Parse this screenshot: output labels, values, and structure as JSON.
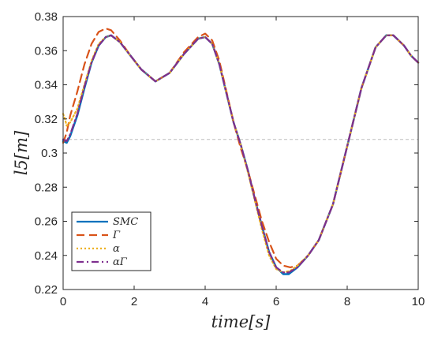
{
  "chart_data": {
    "type": "line",
    "xlabel": "time[s]",
    "ylabel": "l5[m]",
    "xlim": [
      0,
      10
    ],
    "ylim": [
      0.22,
      0.38
    ],
    "x_ticks": [
      0,
      2,
      4,
      6,
      8,
      10
    ],
    "x_tick_labels": [
      "0",
      "2",
      "4",
      "6",
      "8",
      "10"
    ],
    "y_ticks": [
      0.22,
      0.24,
      0.26,
      0.28,
      0.3,
      0.32,
      0.34,
      0.36,
      0.38
    ],
    "y_tick_labels": [
      "0.22",
      "0.24",
      "0.26",
      "0.28",
      "0.3",
      "0.32",
      "0.34",
      "0.36",
      "0.38"
    ],
    "reference_line": {
      "y": 0.308,
      "style": "dashed",
      "color": "#bdbdbd"
    },
    "grid": false,
    "legend": {
      "placement": "bottom-left"
    },
    "series": [
      {
        "name": "SMC",
        "color": "#0072BD",
        "dash": "solid",
        "x": [
          0,
          0.1,
          0.2,
          0.4,
          0.6,
          0.8,
          1.0,
          1.2,
          1.35,
          1.6,
          1.9,
          2.2,
          2.6,
          3.0,
          3.4,
          3.8,
          4.0,
          4.2,
          4.4,
          4.6,
          4.8,
          5.0,
          5.2,
          5.4,
          5.6,
          5.8,
          6.0,
          6.2,
          6.35,
          6.6,
          6.9,
          7.2,
          7.6,
          8.0,
          8.4,
          8.8,
          9.1,
          9.3,
          9.6,
          9.8,
          10.0
        ],
        "values": [
          0.307,
          0.306,
          0.31,
          0.322,
          0.338,
          0.353,
          0.363,
          0.368,
          0.369,
          0.365,
          0.357,
          0.349,
          0.342,
          0.347,
          0.358,
          0.367,
          0.368,
          0.364,
          0.352,
          0.335,
          0.318,
          0.305,
          0.29,
          0.273,
          0.257,
          0.242,
          0.233,
          0.229,
          0.229,
          0.233,
          0.24,
          0.249,
          0.27,
          0.304,
          0.338,
          0.362,
          0.369,
          0.369,
          0.363,
          0.357,
          0.353
        ]
      },
      {
        "name": "Γ",
        "color": "#D95319",
        "dash": "dashed",
        "x": [
          0,
          0.1,
          0.2,
          0.4,
          0.6,
          0.8,
          1.0,
          1.2,
          1.35,
          1.6,
          1.9,
          2.2,
          2.6,
          3.0,
          3.4,
          3.8,
          4.0,
          4.2,
          4.4,
          4.6,
          4.8,
          5.0,
          5.2,
          5.4,
          5.6,
          5.8,
          6.0,
          6.2,
          6.4,
          6.6,
          6.9,
          7.2,
          7.6,
          8.0,
          8.4,
          8.8,
          9.1,
          9.3,
          9.6,
          9.8,
          10.0
        ],
        "values": [
          0.306,
          0.312,
          0.322,
          0.336,
          0.352,
          0.364,
          0.371,
          0.373,
          0.372,
          0.366,
          0.357,
          0.349,
          0.342,
          0.347,
          0.359,
          0.368,
          0.37,
          0.366,
          0.354,
          0.336,
          0.318,
          0.303,
          0.29,
          0.275,
          0.26,
          0.248,
          0.238,
          0.234,
          0.233,
          0.234,
          0.24,
          0.249,
          0.27,
          0.304,
          0.338,
          0.362,
          0.369,
          0.369,
          0.363,
          0.357,
          0.353
        ]
      },
      {
        "name": "α",
        "color": "#EDB120",
        "dash": "dotted",
        "x": [
          0,
          0.05,
          0.1,
          0.2,
          0.4,
          0.6,
          0.8,
          1.0,
          1.2,
          1.35,
          1.6,
          1.9,
          2.2,
          2.6,
          3.0,
          3.4,
          3.8,
          4.0,
          4.2,
          4.4,
          4.6,
          4.8,
          5.0,
          5.2,
          5.4,
          5.6,
          5.8,
          6.0,
          6.2,
          6.4,
          6.6,
          6.9,
          7.2,
          7.6,
          8.0,
          8.4,
          8.8,
          9.1,
          9.3,
          9.6,
          9.8,
          10.0
        ],
        "values": [
          0.323,
          0.32,
          0.316,
          0.318,
          0.326,
          0.34,
          0.354,
          0.364,
          0.368,
          0.369,
          0.365,
          0.357,
          0.349,
          0.342,
          0.347,
          0.358,
          0.367,
          0.368,
          0.364,
          0.352,
          0.335,
          0.318,
          0.305,
          0.289,
          0.272,
          0.255,
          0.24,
          0.232,
          0.23,
          0.231,
          0.234,
          0.24,
          0.249,
          0.27,
          0.304,
          0.338,
          0.362,
          0.369,
          0.369,
          0.363,
          0.357,
          0.353
        ]
      },
      {
        "name": "αΓ",
        "color": "#7E2F8E",
        "dash": "dashdot",
        "x": [
          0,
          0.1,
          0.2,
          0.4,
          0.6,
          0.8,
          1.0,
          1.2,
          1.35,
          1.6,
          1.9,
          2.2,
          2.6,
          3.0,
          3.4,
          3.8,
          4.0,
          4.2,
          4.4,
          4.6,
          4.8,
          5.0,
          5.2,
          5.4,
          5.6,
          5.8,
          6.0,
          6.2,
          6.35,
          6.6,
          6.9,
          7.2,
          7.6,
          8.0,
          8.4,
          8.8,
          9.1,
          9.3,
          9.6,
          9.8,
          10.0
        ],
        "values": [
          0.308,
          0.307,
          0.311,
          0.323,
          0.339,
          0.353,
          0.363,
          0.368,
          0.369,
          0.365,
          0.357,
          0.349,
          0.342,
          0.347,
          0.358,
          0.367,
          0.368,
          0.364,
          0.352,
          0.335,
          0.318,
          0.305,
          0.29,
          0.273,
          0.257,
          0.242,
          0.233,
          0.23,
          0.23,
          0.233,
          0.24,
          0.249,
          0.27,
          0.304,
          0.338,
          0.362,
          0.369,
          0.369,
          0.363,
          0.357,
          0.353
        ]
      }
    ]
  }
}
